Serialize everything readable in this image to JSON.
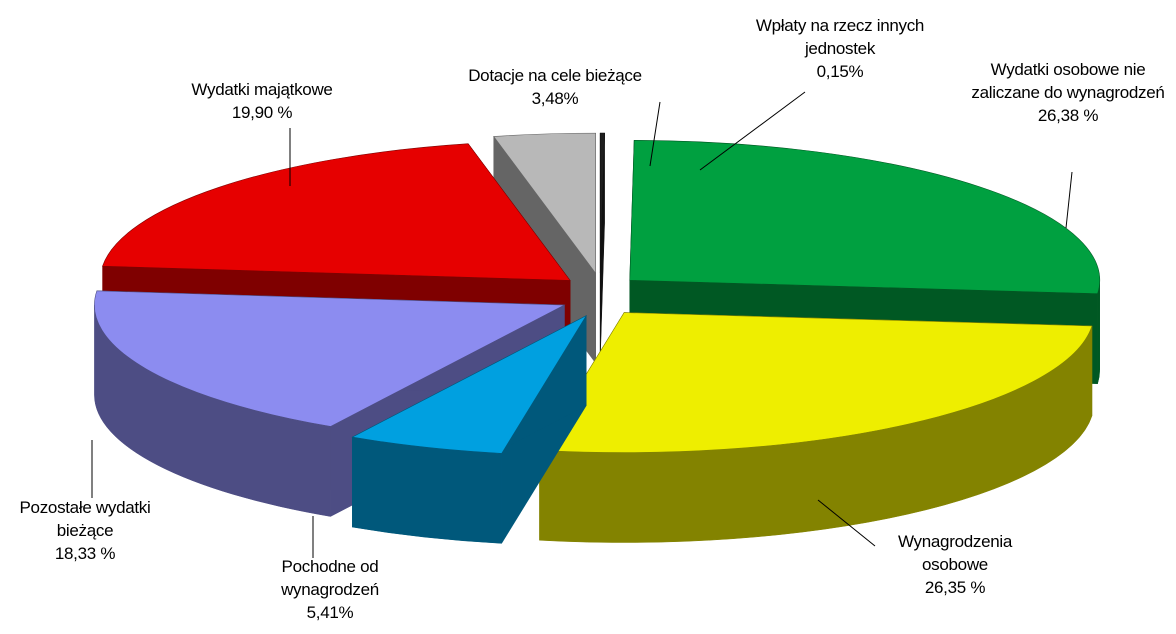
{
  "chart_data": {
    "type": "pie",
    "categories": [
      "Wpłaty na rzecz innych jednostek",
      "Wydatki osobowe nie zaliczane do wynagrodzeń",
      "Wynagrodzenia osobowe",
      "Pochodne od wynagrodzeń",
      "Pozostałe wydatki bieżące",
      "Wydatki majątkowe",
      "Dotacje na cele bieżące"
    ],
    "values": [
      0.15,
      26.38,
      26.35,
      5.41,
      18.33,
      19.9,
      3.48
    ],
    "value_labels": [
      "0,15%",
      "26,38 %",
      "26,35 %",
      "5,41%",
      "18,33 %",
      "19,90 %",
      "3,48%"
    ],
    "colors": [
      "#1e1e1e",
      "#00a040",
      "#eeee00",
      "#00a0e0",
      "#8c8cf0",
      "#e60000",
      "#b8b8b8"
    ],
    "three_d": true
  }
}
